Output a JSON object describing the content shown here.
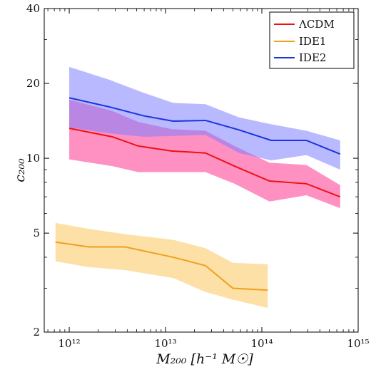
{
  "chart_data": {
    "type": "line",
    "xlabel": "M₂₀₀  [h⁻¹ M☉]",
    "ylabel": "c₂₀₀",
    "xscale": "log",
    "yscale": "log",
    "xlim": [
      550000000000.0,
      1000000000000000.0
    ],
    "ylim": [
      2,
      40
    ],
    "x_ticks": [
      {
        "value": 1000000000000.0,
        "label": "10¹²"
      },
      {
        "value": 10000000000000.0,
        "label": "10¹³"
      },
      {
        "value": 100000000000000.0,
        "label": "10¹⁴"
      },
      {
        "value": 1000000000000000.0,
        "label": "10¹⁵"
      }
    ],
    "y_ticks": [
      {
        "value": 2,
        "label": "2"
      },
      {
        "value": 5,
        "label": "5"
      },
      {
        "value": 10,
        "label": "10"
      },
      {
        "value": 20,
        "label": "20"
      },
      {
        "value": 40,
        "label": "40"
      }
    ],
    "legend_position": "top-right",
    "series": [
      {
        "name": "ΛCDM",
        "color": "#ee1111",
        "band_color": "#ff66aa",
        "band_opacity": 0.72,
        "x": [
          1000000000000.0,
          2800000000000.0,
          5200000000000.0,
          11500000000000.0,
          26000000000000.0,
          52000000000000.0,
          120000000000000.0,
          290000000000000.0,
          650000000000000.0
        ],
        "y": [
          13.2,
          12.2,
          11.2,
          10.7,
          10.5,
          9.3,
          8.1,
          7.9,
          7.0
        ],
        "y_low": [
          9.9,
          9.3,
          8.8,
          8.8,
          8.8,
          7.9,
          6.7,
          7.1,
          6.3
        ],
        "y_high": [
          17.2,
          15.5,
          14.0,
          13.1,
          12.9,
          11.2,
          9.6,
          9.4,
          7.8
        ]
      },
      {
        "name": "IDE1",
        "color": "#f0a020",
        "band_color": "#fbd890",
        "band_opacity": 0.8,
        "x": [
          720000000000.0,
          1600000000000.0,
          3800000000000.0,
          12000000000000.0,
          26000000000000.0,
          50000000000000.0,
          115000000000000.0
        ],
        "y": [
          4.6,
          4.4,
          4.4,
          4.0,
          3.7,
          3.0,
          2.95
        ],
        "y_low": [
          3.85,
          3.65,
          3.55,
          3.3,
          2.9,
          2.7,
          2.5
        ],
        "y_high": [
          5.5,
          5.2,
          4.95,
          4.7,
          4.35,
          3.8,
          3.75
        ]
      },
      {
        "name": "IDE2",
        "color": "#1a33dd",
        "band_color": "#8080ff",
        "band_opacity": 0.55,
        "x": [
          1000000000000.0,
          2600000000000.0,
          6000000000000.0,
          12000000000000.0,
          26000000000000.0,
          58000000000000.0,
          125000000000000.0,
          290000000000000.0,
          650000000000000.0
        ],
        "y": [
          17.5,
          16.1,
          14.8,
          14.1,
          14.2,
          13.0,
          11.8,
          11.8,
          10.4
        ],
        "y_low": [
          13.3,
          12.6,
          12.2,
          12.3,
          12.4,
          10.5,
          9.8,
          10.3,
          9.0
        ],
        "y_high": [
          23.3,
          20.7,
          18.3,
          16.7,
          16.5,
          14.6,
          13.7,
          12.9,
          11.8
        ]
      }
    ]
  }
}
